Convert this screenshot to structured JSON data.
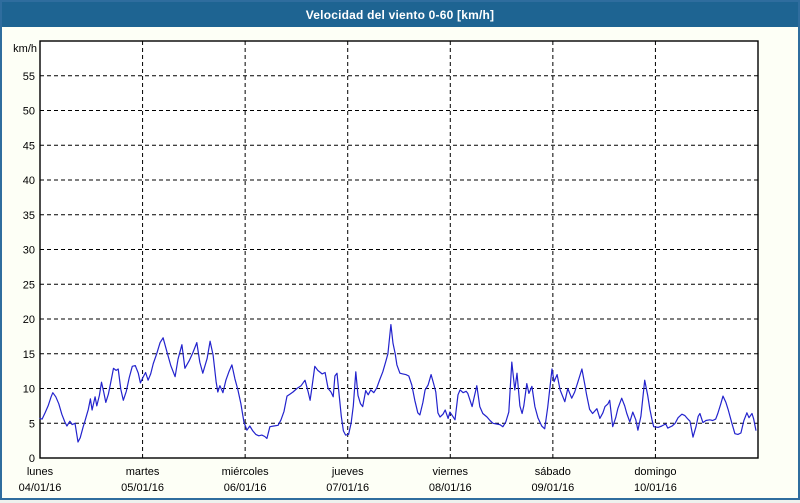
{
  "window": {
    "title": "Velocidad del viento 0-60 [km/h]"
  },
  "chart_data": {
    "type": "line",
    "title": "Velocidad del viento 0-60 [km/h]",
    "ylabel": "km/h",
    "ylim": [
      0,
      60
    ],
    "ytick_step": 5,
    "ytick_labels": [
      "0",
      "5",
      "10",
      "15",
      "20",
      "25",
      "30",
      "35",
      "40",
      "45",
      "50",
      "55"
    ],
    "x_unit": "hours_since_monday_00",
    "xlim": [
      0,
      168
    ],
    "grid": "dashed",
    "legend_position": "none",
    "x_days": [
      {
        "name": "lunes",
        "date": "04/01/16"
      },
      {
        "name": "martes",
        "date": "05/01/16"
      },
      {
        "name": "miércoles",
        "date": "06/01/16"
      },
      {
        "name": "jueves",
        "date": "07/01/16"
      },
      {
        "name": "viernes",
        "date": "08/01/16"
      },
      {
        "name": "sábado",
        "date": "09/01/16"
      },
      {
        "name": "domingo",
        "date": "10/01/16"
      }
    ],
    "colors": {
      "line": "#2323cd",
      "titlebar": "#1e6492",
      "frame_border": "#2f6d9e",
      "plot_background": "#ffffff",
      "page_background": "#fdfff6",
      "grid": "#000000"
    },
    "series": [
      {
        "name": "Velocidad del viento",
        "unit": "km/h",
        "points": [
          [
            0,
            5.7
          ],
          [
            0.5,
            5.6
          ],
          [
            1.2,
            6.5
          ],
          [
            1.9,
            7.5
          ],
          [
            2.6,
            8.8
          ],
          [
            3.0,
            9.4
          ],
          [
            3.7,
            8.8
          ],
          [
            4.4,
            7.8
          ],
          [
            5.1,
            6.3
          ],
          [
            5.8,
            5.2
          ],
          [
            6.3,
            4.6
          ],
          [
            7.0,
            5.3
          ],
          [
            7.5,
            4.8
          ],
          [
            8.2,
            5.0
          ],
          [
            8.9,
            2.3
          ],
          [
            9.4,
            2.9
          ],
          [
            10.1,
            4.5
          ],
          [
            10.5,
            5.3
          ],
          [
            11.3,
            7.0
          ],
          [
            11.8,
            8.5
          ],
          [
            12.2,
            6.9
          ],
          [
            12.9,
            8.8
          ],
          [
            13.3,
            7.5
          ],
          [
            13.9,
            9.0
          ],
          [
            14.4,
            10.9
          ],
          [
            14.9,
            9.5
          ],
          [
            15.4,
            8.0
          ],
          [
            16.0,
            9.2
          ],
          [
            16.6,
            11.0
          ],
          [
            17.2,
            12.9
          ],
          [
            17.8,
            12.6
          ],
          [
            18.3,
            12.8
          ],
          [
            18.9,
            9.9
          ],
          [
            19.5,
            8.3
          ],
          [
            20.2,
            9.6
          ],
          [
            20.9,
            11.6
          ],
          [
            21.6,
            13.2
          ],
          [
            22.3,
            13.3
          ],
          [
            23.0,
            12.2
          ],
          [
            23.5,
            10.8
          ],
          [
            24.1,
            11.6
          ],
          [
            24.7,
            12.3
          ],
          [
            25.3,
            11.2
          ],
          [
            25.9,
            12.1
          ],
          [
            26.5,
            13.6
          ],
          [
            27.3,
            15.0
          ],
          [
            28.1,
            16.6
          ],
          [
            28.8,
            17.3
          ],
          [
            29.7,
            15.3
          ],
          [
            30.6,
            13.3
          ],
          [
            31.6,
            11.7
          ],
          [
            32.3,
            14.2
          ],
          [
            33.2,
            16.3
          ],
          [
            33.9,
            12.9
          ],
          [
            34.9,
            14.0
          ],
          [
            35.8,
            15.2
          ],
          [
            36.7,
            16.6
          ],
          [
            37.4,
            13.8
          ],
          [
            38.1,
            12.2
          ],
          [
            39.1,
            14.3
          ],
          [
            39.8,
            16.8
          ],
          [
            40.5,
            14.8
          ],
          [
            41.2,
            11.0
          ],
          [
            41.6,
            9.5
          ],
          [
            42.1,
            10.4
          ],
          [
            42.8,
            9.4
          ],
          [
            43.5,
            11.2
          ],
          [
            44.2,
            12.4
          ],
          [
            44.9,
            13.4
          ],
          [
            45.6,
            11.4
          ],
          [
            46.3,
            9.8
          ],
          [
            47.0,
            7.8
          ],
          [
            47.7,
            5.2
          ],
          [
            48.4,
            4.0
          ],
          [
            49.1,
            4.6
          ],
          [
            49.8,
            3.9
          ],
          [
            50.5,
            3.4
          ],
          [
            51.2,
            3.2
          ],
          [
            51.9,
            3.3
          ],
          [
            52.6,
            3.1
          ],
          [
            53.1,
            2.8
          ],
          [
            53.8,
            4.5
          ],
          [
            54.7,
            4.6
          ],
          [
            55.7,
            4.7
          ],
          [
            56.4,
            5.5
          ],
          [
            57.1,
            6.7
          ],
          [
            57.8,
            8.9
          ],
          [
            58.5,
            9.2
          ],
          [
            59.2,
            9.5
          ],
          [
            60.1,
            10.0
          ],
          [
            61.1,
            10.4
          ],
          [
            62.0,
            11.2
          ],
          [
            62.7,
            9.6
          ],
          [
            63.2,
            8.3
          ],
          [
            63.6,
            10.0
          ],
          [
            64.3,
            13.2
          ],
          [
            65.0,
            12.6
          ],
          [
            66.0,
            12.1
          ],
          [
            66.7,
            12.3
          ],
          [
            67.4,
            10.0
          ],
          [
            68.1,
            9.5
          ],
          [
            68.6,
            8.8
          ],
          [
            69.0,
            11.8
          ],
          [
            69.5,
            12.2
          ],
          [
            70.0,
            9.0
          ],
          [
            70.5,
            6.0
          ],
          [
            71.0,
            3.9
          ],
          [
            71.5,
            3.3
          ],
          [
            72.2,
            3.4
          ],
          [
            72.8,
            5.0
          ],
          [
            73.3,
            7.5
          ],
          [
            73.9,
            12.4
          ],
          [
            74.4,
            9.0
          ],
          [
            75.0,
            7.8
          ],
          [
            75.5,
            7.4
          ],
          [
            76.2,
            9.7
          ],
          [
            76.8,
            9.1
          ],
          [
            77.4,
            9.8
          ],
          [
            78.1,
            9.4
          ],
          [
            78.8,
            10.1
          ],
          [
            79.5,
            11.3
          ],
          [
            80.2,
            12.4
          ],
          [
            80.9,
            13.9
          ],
          [
            81.4,
            15.0
          ],
          [
            82.1,
            19.2
          ],
          [
            82.6,
            16.5
          ],
          [
            83.1,
            15.0
          ],
          [
            83.5,
            13.4
          ],
          [
            84.2,
            12.2
          ],
          [
            84.9,
            12.1
          ],
          [
            85.6,
            12.0
          ],
          [
            86.3,
            11.8
          ],
          [
            87.0,
            10.5
          ],
          [
            87.7,
            8.3
          ],
          [
            88.4,
            6.5
          ],
          [
            88.9,
            6.2
          ],
          [
            89.6,
            8.0
          ],
          [
            90.1,
            9.8
          ],
          [
            90.8,
            10.5
          ],
          [
            91.5,
            12.0
          ],
          [
            92.2,
            10.5
          ],
          [
            92.6,
            9.5
          ],
          [
            93.1,
            6.5
          ],
          [
            93.6,
            5.9
          ],
          [
            94.3,
            6.3
          ],
          [
            94.8,
            6.9
          ],
          [
            95.5,
            5.7
          ],
          [
            95.9,
            6.6
          ],
          [
            96.6,
            6.0
          ],
          [
            97.1,
            5.5
          ],
          [
            97.8,
            9.1
          ],
          [
            98.3,
            9.8
          ],
          [
            99.0,
            9.4
          ],
          [
            99.7,
            9.6
          ],
          [
            100.1,
            9.3
          ],
          [
            101.1,
            7.4
          ],
          [
            101.5,
            8.5
          ],
          [
            102.2,
            10.4
          ],
          [
            102.9,
            7.4
          ],
          [
            103.6,
            6.4
          ],
          [
            104.6,
            5.9
          ],
          [
            105.3,
            5.4
          ],
          [
            106.0,
            5.0
          ],
          [
            106.7,
            4.9
          ],
          [
            107.6,
            4.8
          ],
          [
            108.3,
            4.5
          ],
          [
            109.0,
            5.2
          ],
          [
            109.7,
            6.6
          ],
          [
            110.4,
            13.8
          ],
          [
            111.1,
            9.8
          ],
          [
            111.6,
            12.2
          ],
          [
            112.3,
            7.5
          ],
          [
            112.8,
            6.4
          ],
          [
            113.2,
            7.5
          ],
          [
            113.9,
            10.7
          ],
          [
            114.4,
            9.3
          ],
          [
            115.1,
            10.3
          ],
          [
            115.8,
            7.4
          ],
          [
            116.5,
            5.8
          ],
          [
            117.4,
            4.6
          ],
          [
            118.1,
            4.2
          ],
          [
            118.8,
            7.3
          ],
          [
            119.8,
            12.8
          ],
          [
            120.3,
            11.0
          ],
          [
            121.0,
            12.0
          ],
          [
            121.7,
            9.8
          ],
          [
            122.8,
            8.1
          ],
          [
            123.5,
            10.0
          ],
          [
            124.4,
            8.6
          ],
          [
            125.1,
            9.5
          ],
          [
            125.8,
            10.8
          ],
          [
            126.8,
            12.8
          ],
          [
            127.5,
            10.5
          ],
          [
            127.9,
            9.1
          ],
          [
            128.6,
            7.0
          ],
          [
            129.3,
            6.4
          ],
          [
            130.3,
            7.1
          ],
          [
            131.0,
            5.7
          ],
          [
            131.7,
            6.5
          ],
          [
            132.2,
            7.4
          ],
          [
            132.9,
            7.8
          ],
          [
            133.3,
            8.3
          ],
          [
            134.0,
            4.5
          ],
          [
            134.7,
            5.8
          ],
          [
            135.2,
            7.1
          ],
          [
            136.1,
            8.6
          ],
          [
            136.8,
            7.5
          ],
          [
            137.3,
            6.4
          ],
          [
            138.0,
            5.2
          ],
          [
            138.7,
            6.6
          ],
          [
            139.4,
            5.5
          ],
          [
            139.9,
            4.0
          ],
          [
            140.6,
            6.0
          ],
          [
            141.5,
            11.2
          ],
          [
            142.2,
            9.0
          ],
          [
            142.7,
            7.0
          ],
          [
            143.2,
            5.5
          ],
          [
            143.6,
            4.5
          ],
          [
            144.6,
            4.4
          ],
          [
            145.5,
            4.6
          ],
          [
            146.4,
            4.9
          ],
          [
            146.9,
            4.3
          ],
          [
            147.9,
            4.6
          ],
          [
            148.6,
            5.0
          ],
          [
            149.3,
            5.8
          ],
          [
            150.2,
            6.3
          ],
          [
            150.9,
            6.1
          ],
          [
            151.6,
            5.6
          ],
          [
            152.1,
            5.3
          ],
          [
            152.8,
            3.0
          ],
          [
            153.5,
            4.5
          ],
          [
            154.0,
            6.0
          ],
          [
            154.4,
            6.4
          ],
          [
            155.1,
            5.1
          ],
          [
            155.8,
            5.4
          ],
          [
            156.7,
            5.5
          ],
          [
            157.4,
            5.4
          ],
          [
            158.1,
            5.6
          ],
          [
            158.6,
            6.4
          ],
          [
            159.3,
            7.8
          ],
          [
            159.8,
            8.9
          ],
          [
            160.5,
            8.0
          ],
          [
            161.0,
            7.0
          ],
          [
            161.9,
            5.0
          ],
          [
            162.6,
            3.5
          ],
          [
            163.3,
            3.4
          ],
          [
            164.0,
            3.6
          ],
          [
            164.7,
            5.4
          ],
          [
            165.4,
            6.5
          ],
          [
            165.9,
            5.8
          ],
          [
            166.6,
            6.4
          ],
          [
            167.0,
            5.6
          ],
          [
            167.5,
            4.0
          ]
        ]
      }
    ]
  }
}
